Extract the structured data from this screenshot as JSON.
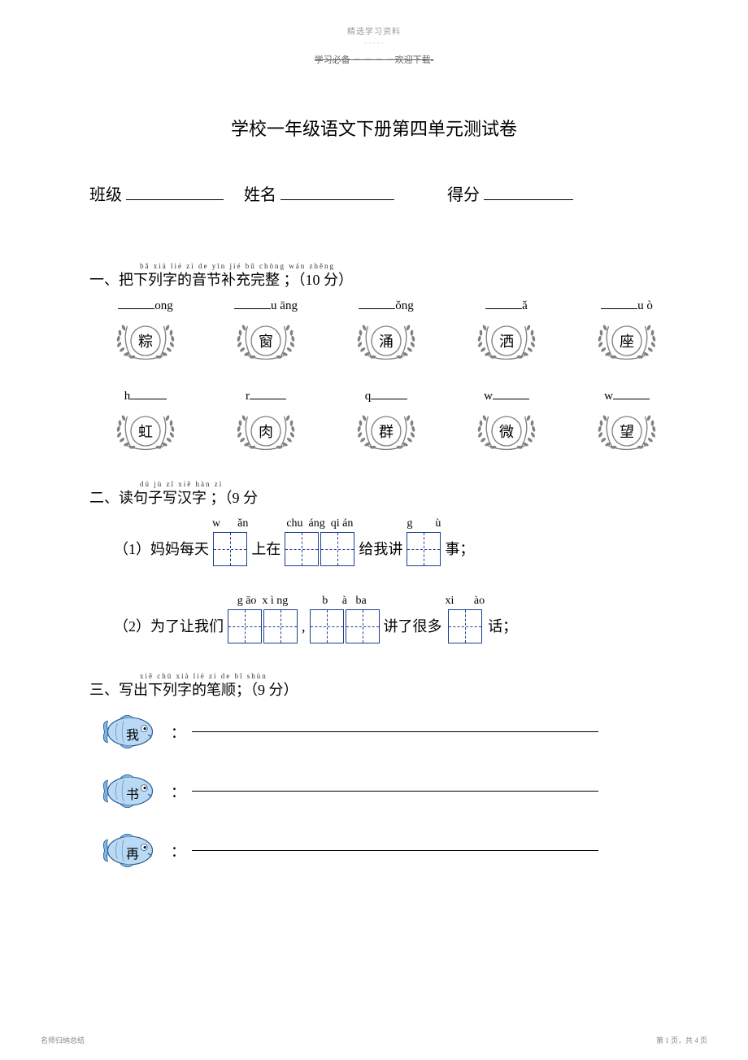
{
  "header": {
    "tiny": "精选学习资料",
    "tiny2": "- - - - -",
    "strike": "学习必备 － － － －欢迎下载-"
  },
  "title": "学校一年级语文下册第四单元测试卷",
  "info": {
    "class_label": "班级",
    "name_label": "姓名",
    "score_label": "得分"
  },
  "section1": {
    "ruby": "bǎ xià liè  zì  de  yīn jié  bǔ chōng wán zhěng",
    "head": "一、把下列字的音节补充完整 ；（10 分）",
    "row1": [
      {
        "pinyin_prefix": "",
        "pinyin_suffix": "ong",
        "char": "粽"
      },
      {
        "pinyin_prefix": "",
        "pinyin_suffix": "u āng",
        "char": "窗"
      },
      {
        "pinyin_prefix": "",
        "pinyin_suffix": "ǒng",
        "char": "涌"
      },
      {
        "pinyin_prefix": "",
        "pinyin_suffix": "ǎ",
        "char": "洒"
      },
      {
        "pinyin_prefix": "",
        "pinyin_suffix": "u  ò",
        "char": "座"
      }
    ],
    "row2": [
      {
        "pinyin_prefix": "h",
        "pinyin_suffix": "",
        "char": "虹"
      },
      {
        "pinyin_prefix": "r",
        "pinyin_suffix": "",
        "char": "肉"
      },
      {
        "pinyin_prefix": "q",
        "pinyin_suffix": "",
        "char": "群"
      },
      {
        "pinyin_prefix": "w",
        "pinyin_suffix": "",
        "char": "微"
      },
      {
        "pinyin_prefix": "w",
        "pinyin_suffix": "",
        "char": "望"
      }
    ]
  },
  "section2": {
    "ruby": "dú  jù   zǐ  xiě hàn  zì",
    "head": "二、读句子写汉字  ；（9 分",
    "line1": {
      "pre": "（1）妈妈每天",
      "py1": "w      ǎn",
      "mid1": "上在",
      "py2": "chu  áng  qi án",
      "mid2": "给我讲",
      "py3": "g        ù",
      "end": "事；"
    },
    "line2": {
      "pre": "（2）为了让我们",
      "py1": "g āo  x ì ng",
      "mid1": ",",
      "py2": "b     à   ba",
      "mid2": "讲了很多",
      "py3": "xi       ào",
      "end": "话；"
    }
  },
  "section3": {
    "ruby": "xiě chū xià liè   zì   de  bǐ shùn",
    "head": "三、写出下列字的笔顺；（9 分）",
    "items": [
      {
        "char": "我"
      },
      {
        "char": "书"
      },
      {
        "char": "再"
      }
    ]
  },
  "footer": {
    "left": "名师归纳总结",
    "right": "第 1 页，共 4 页"
  },
  "colors": {
    "wreath": "#808080",
    "tzg": "#1a3f8f",
    "fish_body": "#b9d9f4",
    "fish_stroke": "#2c5a8f",
    "fish_fin": "#7ab4e0"
  }
}
